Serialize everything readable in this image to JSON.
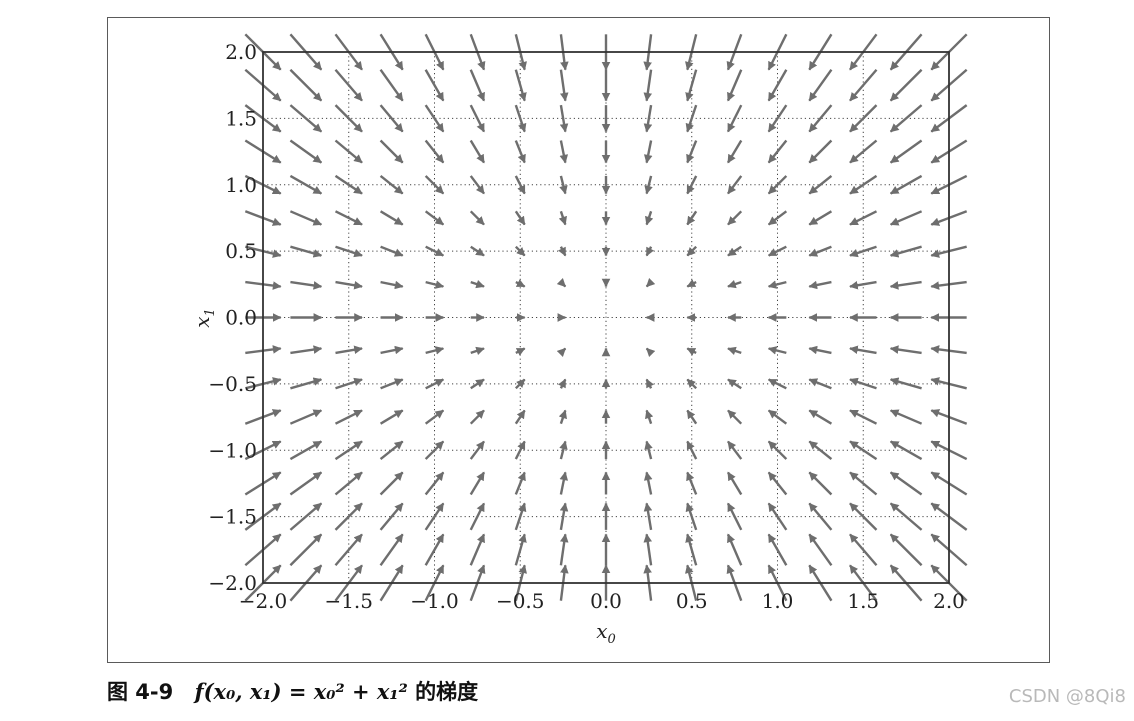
{
  "chart_data": {
    "type": "quiver",
    "function": "f(x0, x1) = x0^2 + x1^2",
    "vector_field": "negative gradient (-2*x0, -2*x1), arrows normalized",
    "xlabel": "x_0",
    "ylabel": "x_1",
    "xlim": [
      -2.0,
      2.0
    ],
    "ylim": [
      -2.0,
      2.0
    ],
    "x_ticks": [
      -2.0,
      -1.5,
      -1.0,
      -0.5,
      0.0,
      0.5,
      1.0,
      1.5,
      2.0
    ],
    "y_ticks": [
      -2.0,
      -1.5,
      -1.0,
      -0.5,
      0.0,
      0.5,
      1.0,
      1.5,
      2.0
    ],
    "x_tick_labels": [
      "−2.0",
      "−1.5",
      "−1.0",
      "−0.5",
      "0.0",
      "0.5",
      "1.0",
      "1.5",
      "2.0"
    ],
    "y_tick_labels": [
      "−2.0",
      "−1.5",
      "−1.0",
      "−0.5",
      "0.0",
      "0.5",
      "1.0",
      "1.5",
      "2.0"
    ],
    "grid": "dotted, at major ticks",
    "arrow_grid": {
      "start": -2.0,
      "stop": 2.0,
      "step": 0.25
    },
    "arrow_color": "#6e6e6e",
    "legend": "none"
  },
  "caption": {
    "figure_number": "图 4-9",
    "formula": "f(x₀, x₁) = x₀² + x₁²",
    "text": "的梯度"
  },
  "watermark": "CSDN @8Qi8"
}
